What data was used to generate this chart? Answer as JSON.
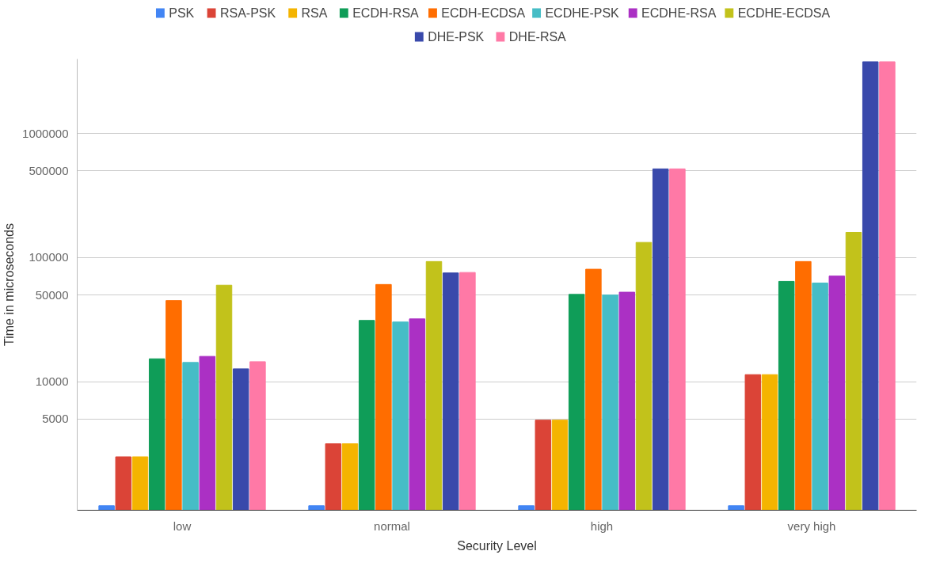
{
  "chart_data": {
    "type": "bar",
    "xlabel": "Security Level",
    "ylabel": "Time in microseconds",
    "categories": [
      "low",
      "normal",
      "high",
      "very high"
    ],
    "log": true,
    "grid": "y",
    "legend": "top",
    "ylim": [
      920,
      4000000
    ],
    "yticks": [
      5000,
      10000,
      50000,
      100000,
      500000,
      1000000
    ],
    "series": [
      {
        "name": "PSK",
        "color": "#4285f4",
        "values": [
          1000,
          1000,
          1000,
          1000
        ]
      },
      {
        "name": "RSA-PSK",
        "color": "#db4437",
        "values": [
          2480,
          3160,
          4900,
          11400
        ]
      },
      {
        "name": "RSA",
        "color": "#f4b400",
        "values": [
          2480,
          3160,
          4900,
          11400
        ]
      },
      {
        "name": "ECDH-RSA",
        "color": "#0f9d58",
        "values": [
          15300,
          31200,
          50600,
          64400
        ]
      },
      {
        "name": "ECDH-ECDSA",
        "color": "#ff6d00",
        "values": [
          45100,
          60800,
          80700,
          93100
        ]
      },
      {
        "name": "ECDHE-PSK",
        "color": "#46bdc6",
        "values": [
          14300,
          30300,
          50000,
          62500
        ]
      },
      {
        "name": "ECDHE-RSA",
        "color": "#ab30c4",
        "values": [
          16000,
          32100,
          52700,
          71100
        ]
      },
      {
        "name": "ECDHE-ECDSA",
        "color": "#c2c21b",
        "values": [
          60000,
          93100,
          132800,
          160000
        ]
      },
      {
        "name": "DHE-PSK",
        "color": "#3949ab",
        "values": [
          12700,
          75300,
          520000,
          3800000
        ]
      },
      {
        "name": "DHE-RSA",
        "color": "#ff79a6",
        "values": [
          14500,
          76000,
          520000,
          3800000
        ]
      }
    ]
  }
}
